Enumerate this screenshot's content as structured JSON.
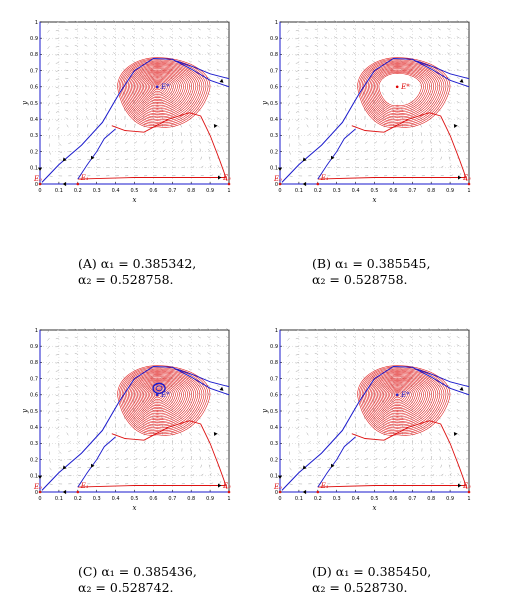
{
  "panels": [
    {
      "id": "A",
      "caption": {
        "label": "(A)",
        "line1": "α₁ = 0.385342,",
        "line2": "α₂ = 0.528758."
      },
      "style": "red-nested",
      "axis_labels": {
        "x": "x",
        "y": "y"
      },
      "eq_labels": [
        "E₀",
        "E₁",
        "E₂",
        "E*"
      ],
      "center_color": "#2222cc"
    },
    {
      "id": "B",
      "caption": {
        "label": "(B)",
        "line1": "α₁ = 0.385545,",
        "line2": "α₂ = 0.528758."
      },
      "style": "red-hollow",
      "axis_labels": {
        "x": "x",
        "y": "y"
      },
      "eq_labels": [
        "E₀",
        "E₁",
        "E₂",
        "E*"
      ],
      "center_color": "#dd0000"
    },
    {
      "id": "C",
      "caption": {
        "label": "(C)",
        "line1": "α₁ = 0.385436,",
        "line2": "α₂ = 0.528742."
      },
      "style": "blue-cycle",
      "axis_labels": {
        "x": "x",
        "y": "y"
      },
      "eq_labels": [
        "E₀",
        "E₁",
        "E₂",
        "E*"
      ],
      "center_color": "#2222cc"
    },
    {
      "id": "D",
      "caption": {
        "label": "(D)",
        "line1": "α₁ = 0.385450,",
        "line2": "α₂ = 0.528730."
      },
      "style": "red-nested",
      "axis_labels": {
        "x": "x",
        "y": "y"
      },
      "eq_labels": [
        "E₀",
        "E₁",
        "E₂",
        "E*"
      ],
      "center_color": "#2222cc"
    }
  ],
  "axes": {
    "x_ticks": [
      "0",
      "0.1",
      "0.2",
      "0.3",
      "0.4",
      "0.5",
      "0.6",
      "0.7",
      "0.8",
      "0.9",
      "1"
    ],
    "y_ticks": [
      "0",
      "0.1",
      "0.2",
      "0.3",
      "0.4",
      "0.5",
      "0.6",
      "0.7",
      "0.8",
      "0.9",
      "1"
    ]
  },
  "colors": {
    "trajectory_blue": "#1a1acc",
    "trajectory_red": "#dd1111",
    "field_gray": "#9a9a9a"
  }
}
